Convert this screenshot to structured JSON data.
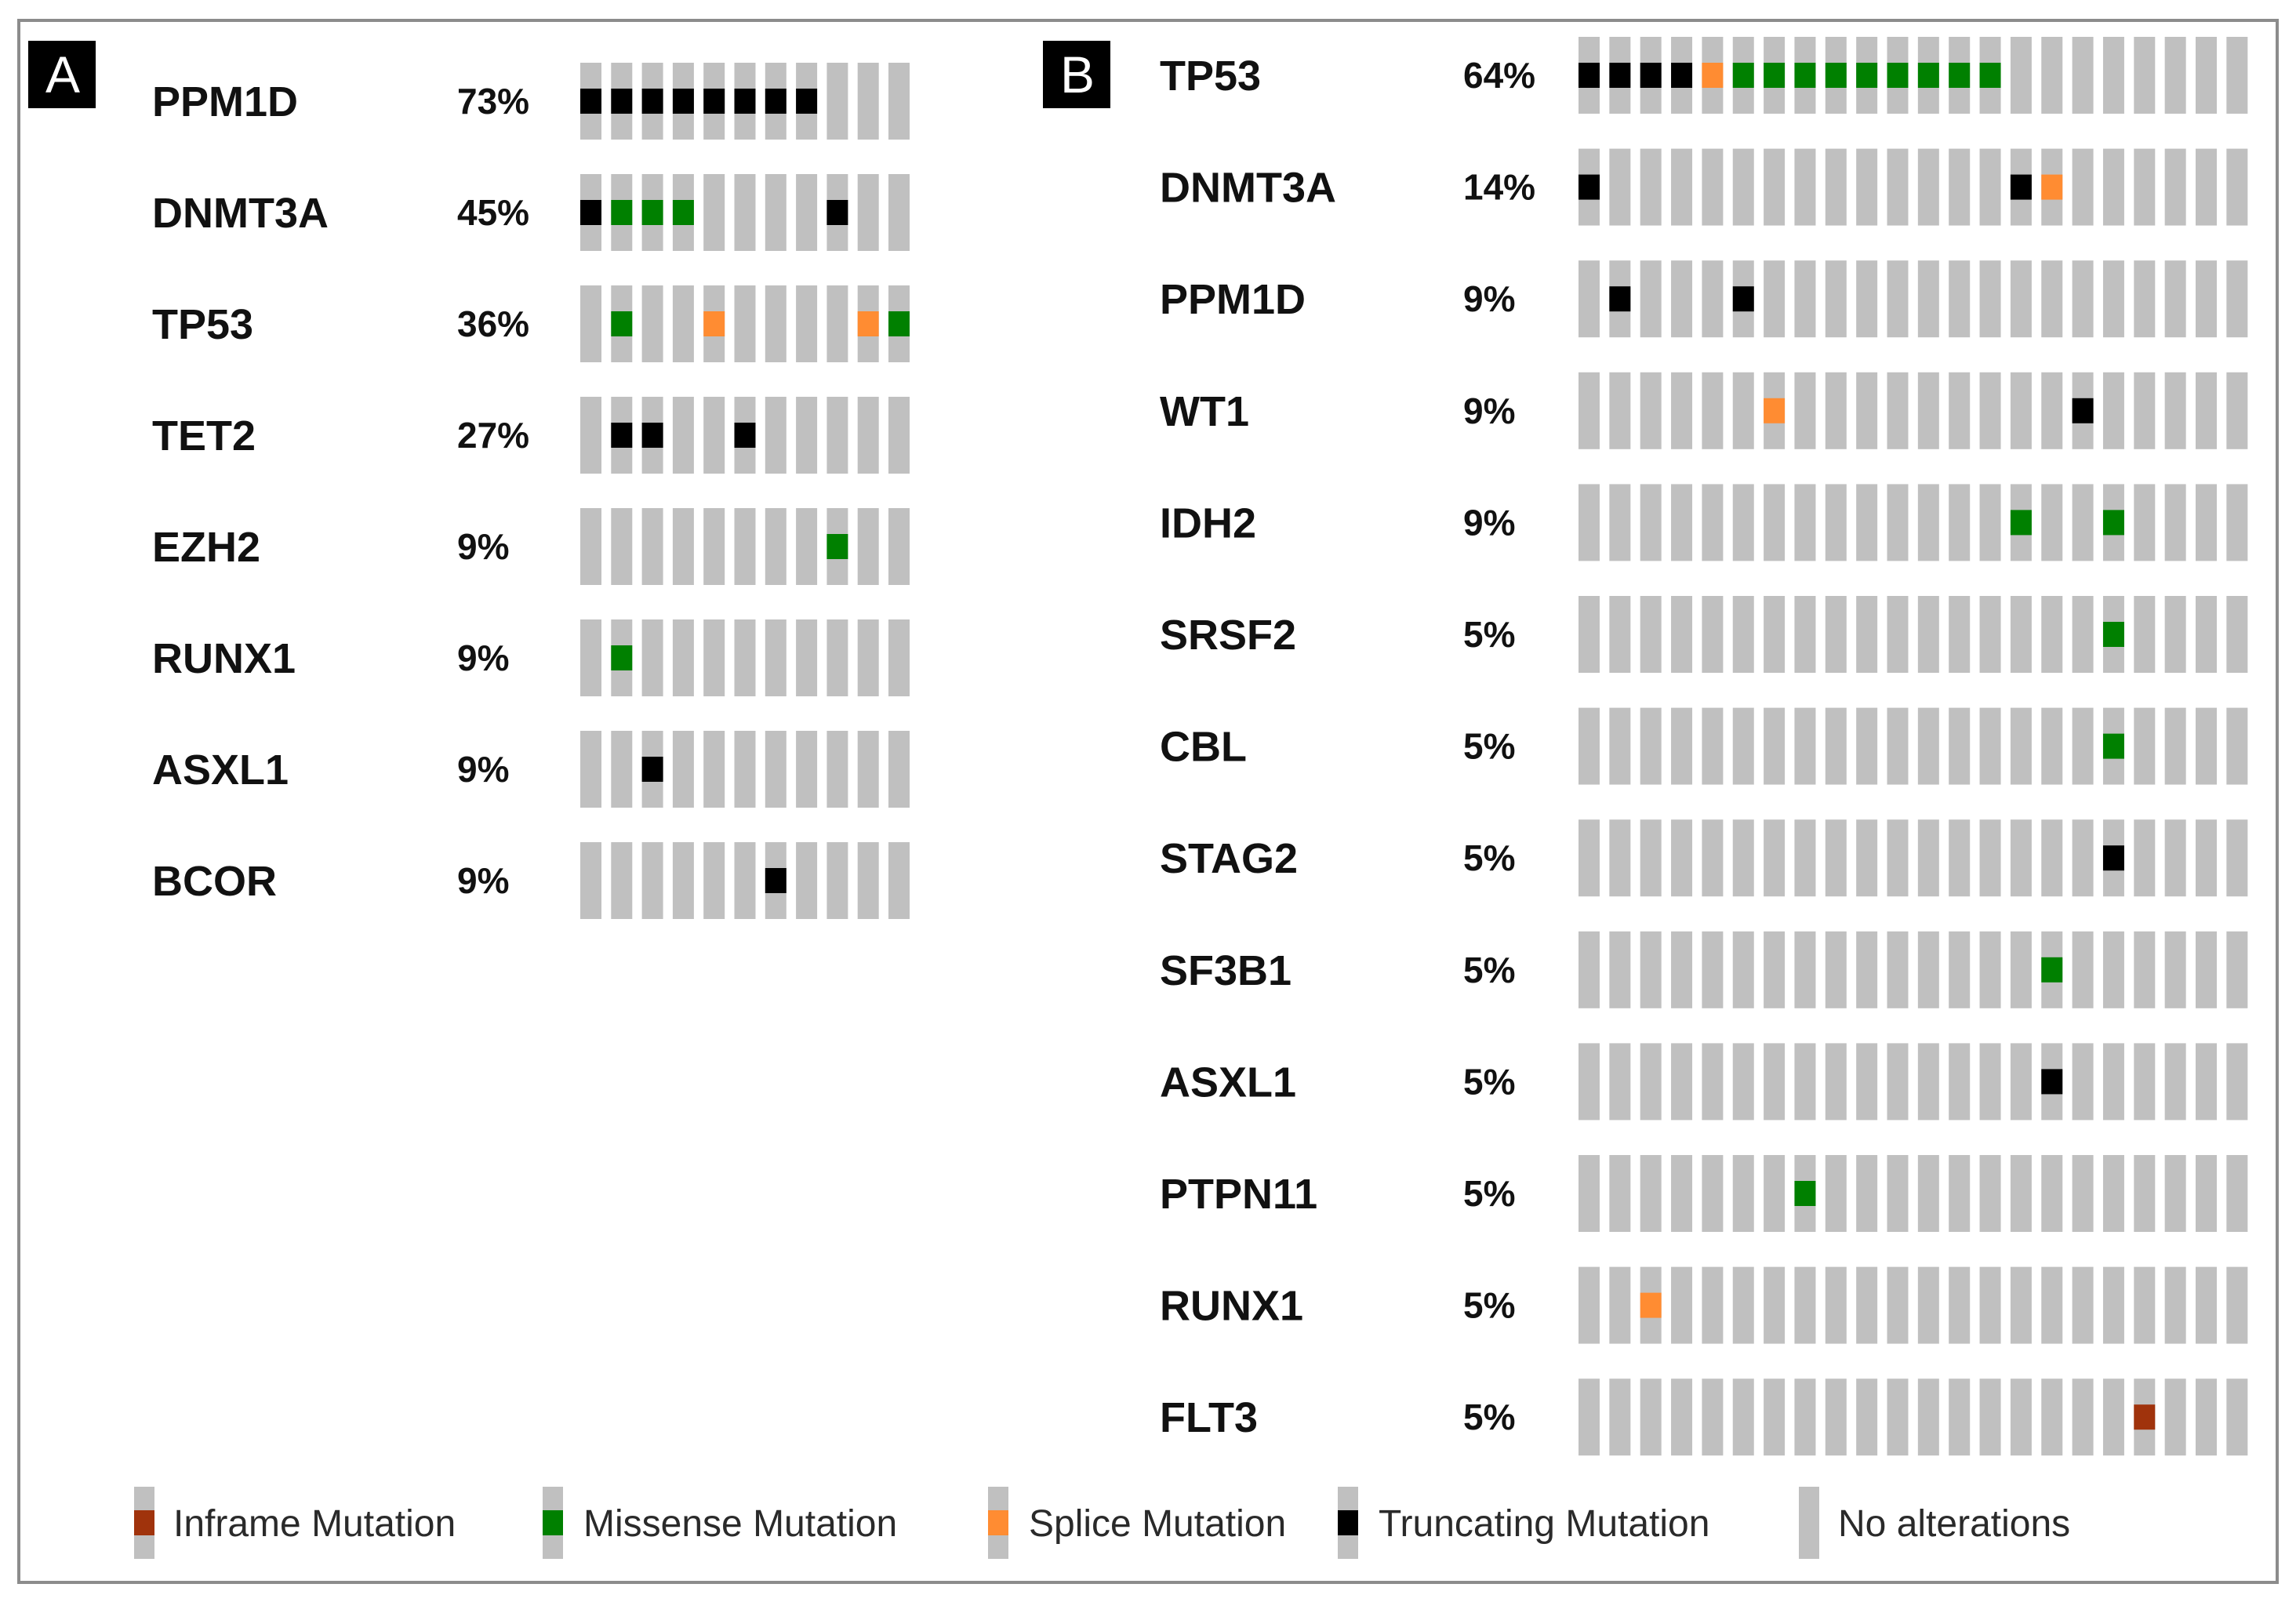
{
  "colors": {
    "none": "#c0c0c0",
    "truncating": "#000000",
    "missense": "#008000",
    "splice": "#ff8c32",
    "inframe": "#a0330c"
  },
  "chart_data": [
    {
      "type": "oncoprint",
      "panel": "A",
      "samples": 11,
      "genes": [
        {
          "name": "PPM1D",
          "pct": "73%",
          "alterations": [
            [
              0,
              "truncating"
            ],
            [
              1,
              "truncating"
            ],
            [
              2,
              "truncating"
            ],
            [
              3,
              "truncating"
            ],
            [
              4,
              "truncating"
            ],
            [
              5,
              "truncating"
            ],
            [
              6,
              "truncating"
            ],
            [
              7,
              "truncating"
            ]
          ]
        },
        {
          "name": "DNMT3A",
          "pct": "45%",
          "alterations": [
            [
              0,
              "truncating"
            ],
            [
              1,
              "missense"
            ],
            [
              2,
              "missense"
            ],
            [
              3,
              "missense"
            ],
            [
              8,
              "truncating"
            ]
          ]
        },
        {
          "name": "TP53",
          "pct": "36%",
          "alterations": [
            [
              1,
              "missense"
            ],
            [
              4,
              "splice"
            ],
            [
              9,
              "splice"
            ],
            [
              10,
              "missense"
            ]
          ]
        },
        {
          "name": "TET2",
          "pct": "27%",
          "alterations": [
            [
              1,
              "truncating"
            ],
            [
              2,
              "truncating"
            ],
            [
              5,
              "truncating"
            ]
          ]
        },
        {
          "name": "EZH2",
          "pct": "9%",
          "alterations": [
            [
              8,
              "missense"
            ]
          ]
        },
        {
          "name": "RUNX1",
          "pct": "9%",
          "alterations": [
            [
              1,
              "missense"
            ]
          ]
        },
        {
          "name": "ASXL1",
          "pct": "9%",
          "alterations": [
            [
              2,
              "truncating"
            ]
          ]
        },
        {
          "name": "BCOR",
          "pct": "9%",
          "alterations": [
            [
              6,
              "truncating"
            ]
          ]
        }
      ]
    },
    {
      "type": "oncoprint",
      "panel": "B",
      "samples": 22,
      "genes": [
        {
          "name": "TP53",
          "pct": "64%",
          "alterations": [
            [
              0,
              "truncating"
            ],
            [
              1,
              "truncating"
            ],
            [
              2,
              "truncating"
            ],
            [
              3,
              "truncating"
            ],
            [
              4,
              "splice"
            ],
            [
              5,
              "missense"
            ],
            [
              6,
              "missense"
            ],
            [
              7,
              "missense"
            ],
            [
              8,
              "missense"
            ],
            [
              9,
              "missense"
            ],
            [
              10,
              "missense"
            ],
            [
              11,
              "missense"
            ],
            [
              12,
              "missense"
            ],
            [
              13,
              "missense"
            ]
          ]
        },
        {
          "name": "DNMT3A",
          "pct": "14%",
          "alterations": [
            [
              0,
              "truncating"
            ],
            [
              14,
              "truncating"
            ],
            [
              15,
              "splice"
            ]
          ]
        },
        {
          "name": "PPM1D",
          "pct": "9%",
          "alterations": [
            [
              1,
              "truncating"
            ],
            [
              5,
              "truncating"
            ]
          ]
        },
        {
          "name": "WT1",
          "pct": "9%",
          "alterations": [
            [
              6,
              "splice"
            ],
            [
              16,
              "truncating"
            ]
          ]
        },
        {
          "name": "IDH2",
          "pct": "9%",
          "alterations": [
            [
              14,
              "missense"
            ],
            [
              17,
              "missense"
            ]
          ]
        },
        {
          "name": "SRSF2",
          "pct": "5%",
          "alterations": [
            [
              17,
              "missense"
            ]
          ]
        },
        {
          "name": "CBL",
          "pct": "5%",
          "alterations": [
            [
              17,
              "missense"
            ]
          ]
        },
        {
          "name": "STAG2",
          "pct": "5%",
          "alterations": [
            [
              17,
              "truncating"
            ]
          ]
        },
        {
          "name": "SF3B1",
          "pct": "5%",
          "alterations": [
            [
              15,
              "missense"
            ]
          ]
        },
        {
          "name": "ASXL1",
          "pct": "5%",
          "alterations": [
            [
              15,
              "truncating"
            ]
          ]
        },
        {
          "name": "PTPN11",
          "pct": "5%",
          "alterations": [
            [
              7,
              "missense"
            ]
          ]
        },
        {
          "name": "RUNX1",
          "pct": "5%",
          "alterations": [
            [
              2,
              "splice"
            ]
          ]
        },
        {
          "name": "FLT3",
          "pct": "5%",
          "alterations": [
            [
              18,
              "inframe"
            ]
          ]
        }
      ]
    }
  ],
  "legend": [
    {
      "label": "Inframe Mutation",
      "type": "inframe"
    },
    {
      "label": "Missense Mutation",
      "type": "missense"
    },
    {
      "label": "Splice Mutation",
      "type": "splice"
    },
    {
      "label": "Truncating Mutation",
      "type": "truncating"
    },
    {
      "label": "No alterations",
      "type": "none"
    }
  ]
}
